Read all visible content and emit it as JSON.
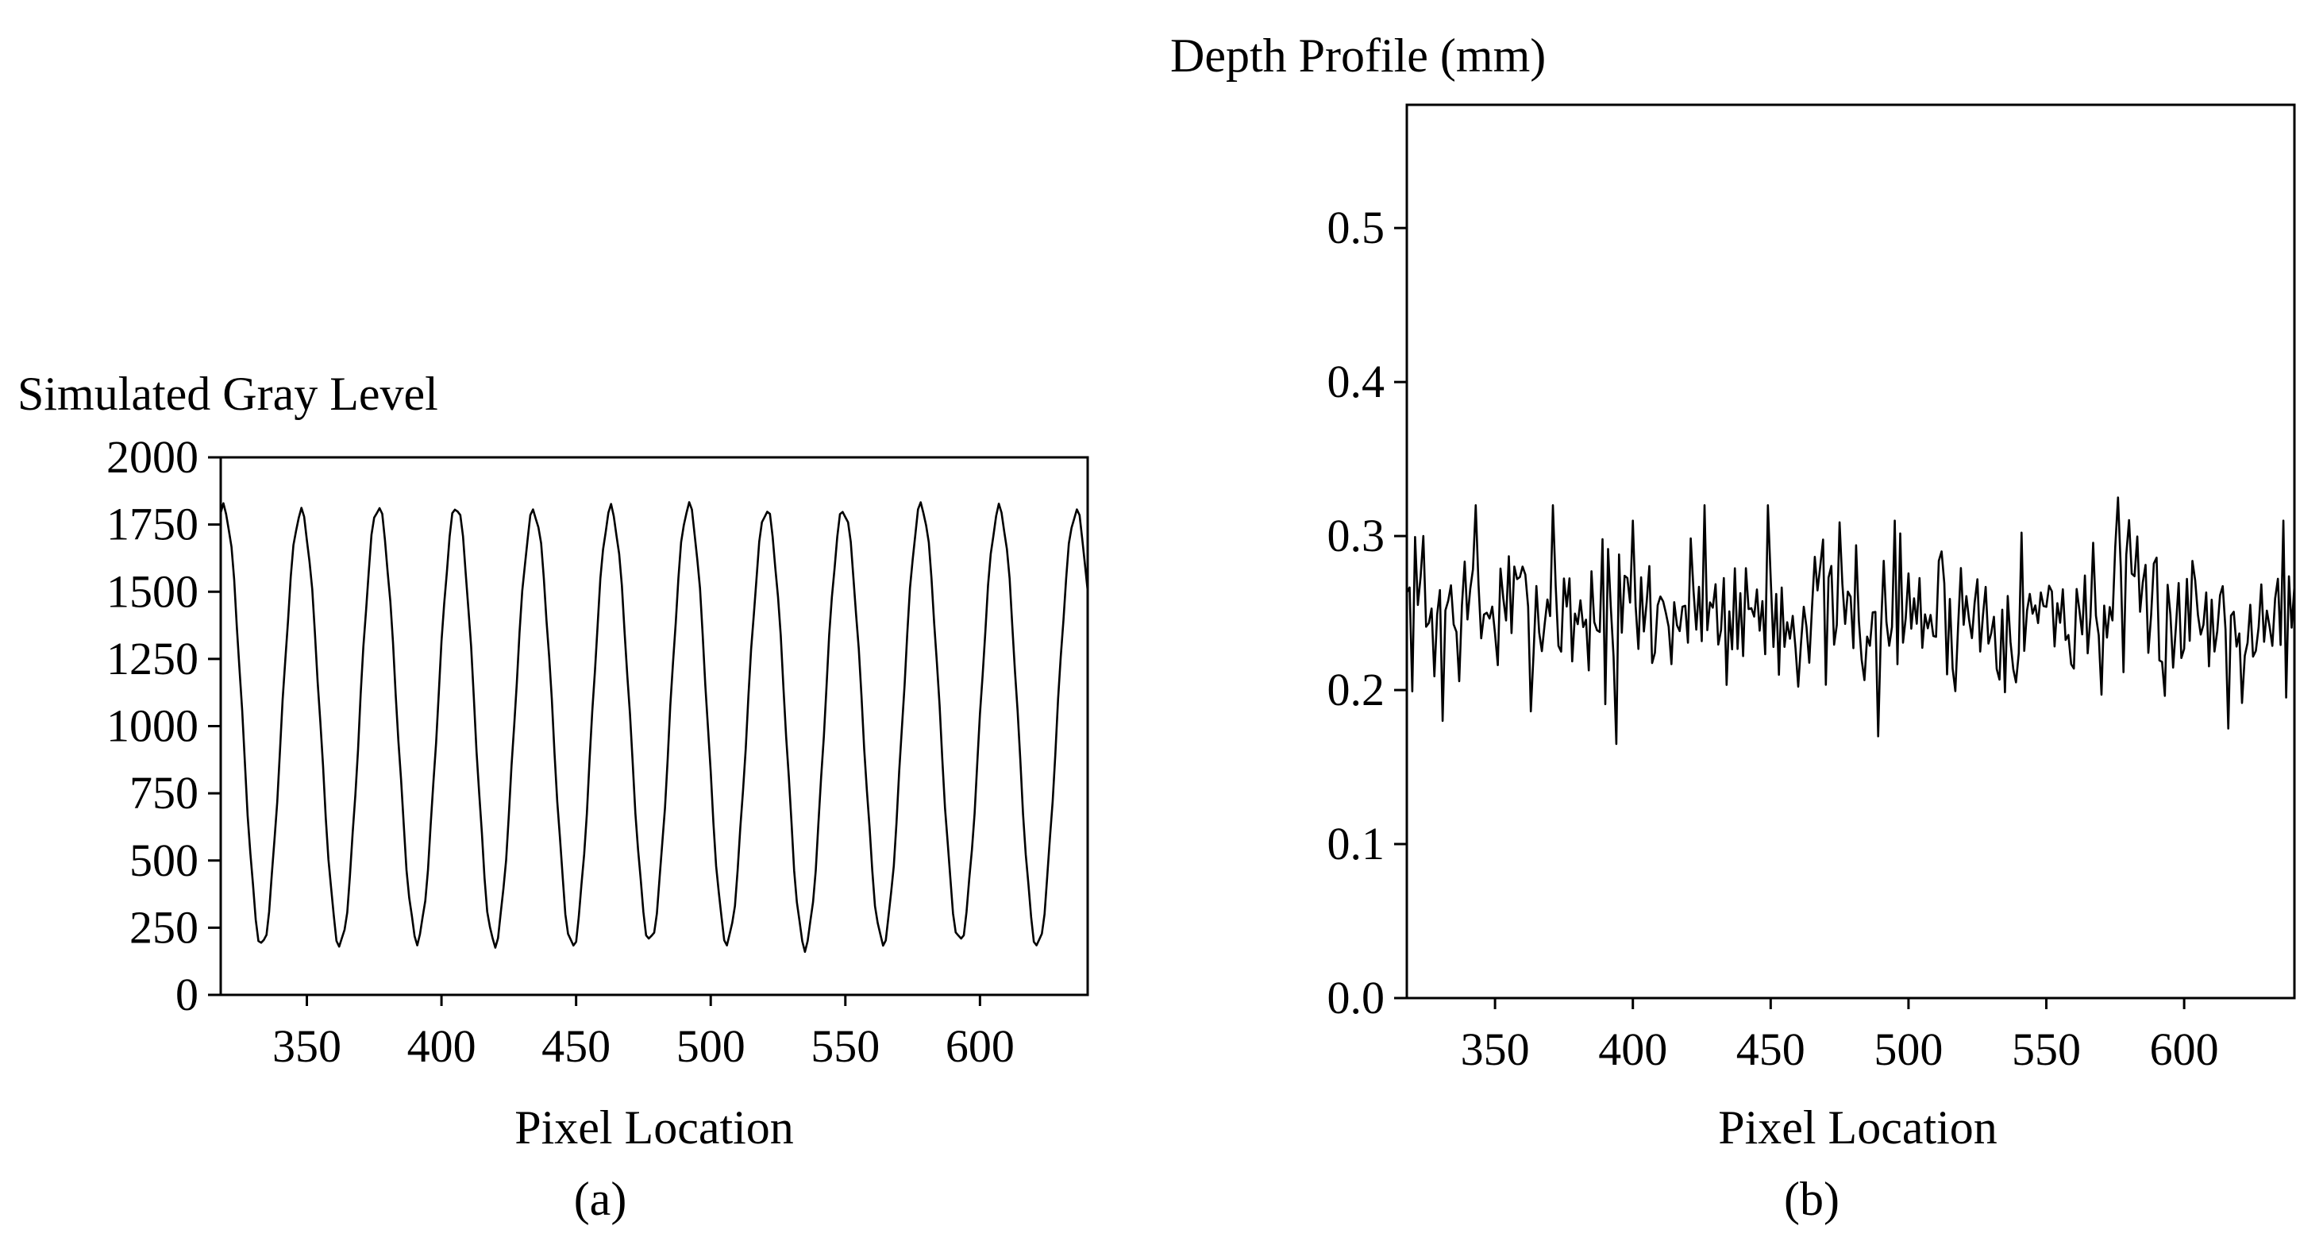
{
  "chart_data": [
    {
      "type": "line",
      "panel": "a",
      "title": "Simulated Gray Level",
      "xlabel": "Pixel Location",
      "ylabel": "Simulated Gray Level",
      "caption": "(a)",
      "xlim": [
        318,
        640
      ],
      "ylim": [
        0,
        2000
      ],
      "x_ticks": [
        350,
        400,
        450,
        500,
        550,
        600
      ],
      "y_ticks": [
        0,
        250,
        500,
        750,
        1000,
        1250,
        1500,
        1750,
        2000
      ],
      "series": [
        {
          "name": "Simulated Gray Level",
          "signal": {
            "offset": 1000,
            "amplitude": 810,
            "period": 28.8,
            "phase_x": 319,
            "x_start": 318,
            "x_end": 640,
            "step": 1
          },
          "peak_x": [
            319,
            348,
            377,
            406,
            434,
            463,
            492,
            521,
            549,
            578,
            607,
            636
          ],
          "peak_values": [
            1840,
            1820,
            1850,
            1800,
            1800,
            1780,
            1820,
            1850,
            1850,
            1840,
            1830,
            1810
          ],
          "trough_x": [
            333,
            362,
            391,
            420,
            449,
            478,
            506,
            535,
            564,
            593,
            621
          ],
          "trough_values": [
            200,
            160,
            210,
            170,
            190,
            180,
            230,
            150,
            210,
            180,
            210
          ]
        }
      ]
    },
    {
      "type": "line",
      "panel": "b",
      "title": "Depth Profile (mm)",
      "xlabel": "Pixel Location",
      "ylabel": "Depth Profile (mm)",
      "caption": "(b)",
      "xlim": [
        318,
        640
      ],
      "ylim": [
        0,
        0.58
      ],
      "x_ticks": [
        350,
        400,
        450,
        500,
        550,
        600
      ],
      "y_ticks": [
        "0.0",
        "0.1",
        "0.2",
        "0.3",
        "0.4",
        "0.5"
      ],
      "series": [
        {
          "name": "Depth Profile",
          "signal": {
            "mean": 0.25,
            "noise_sd": 0.025,
            "x_start": 318,
            "x_end": 640,
            "step": 1,
            "seed": 7
          },
          "notable_points": [
            {
              "x": 324,
              "y": 0.3
            },
            {
              "x": 331,
              "y": 0.18
            },
            {
              "x": 343,
              "y": 0.32
            },
            {
              "x": 371,
              "y": 0.32
            },
            {
              "x": 394,
              "y": 0.165
            },
            {
              "x": 400,
              "y": 0.31
            },
            {
              "x": 426,
              "y": 0.32
            },
            {
              "x": 449,
              "y": 0.32
            },
            {
              "x": 489,
              "y": 0.17
            },
            {
              "x": 495,
              "y": 0.31
            },
            {
              "x": 576,
              "y": 0.325
            },
            {
              "x": 616,
              "y": 0.175
            },
            {
              "x": 636,
              "y": 0.31
            }
          ]
        }
      ]
    }
  ]
}
